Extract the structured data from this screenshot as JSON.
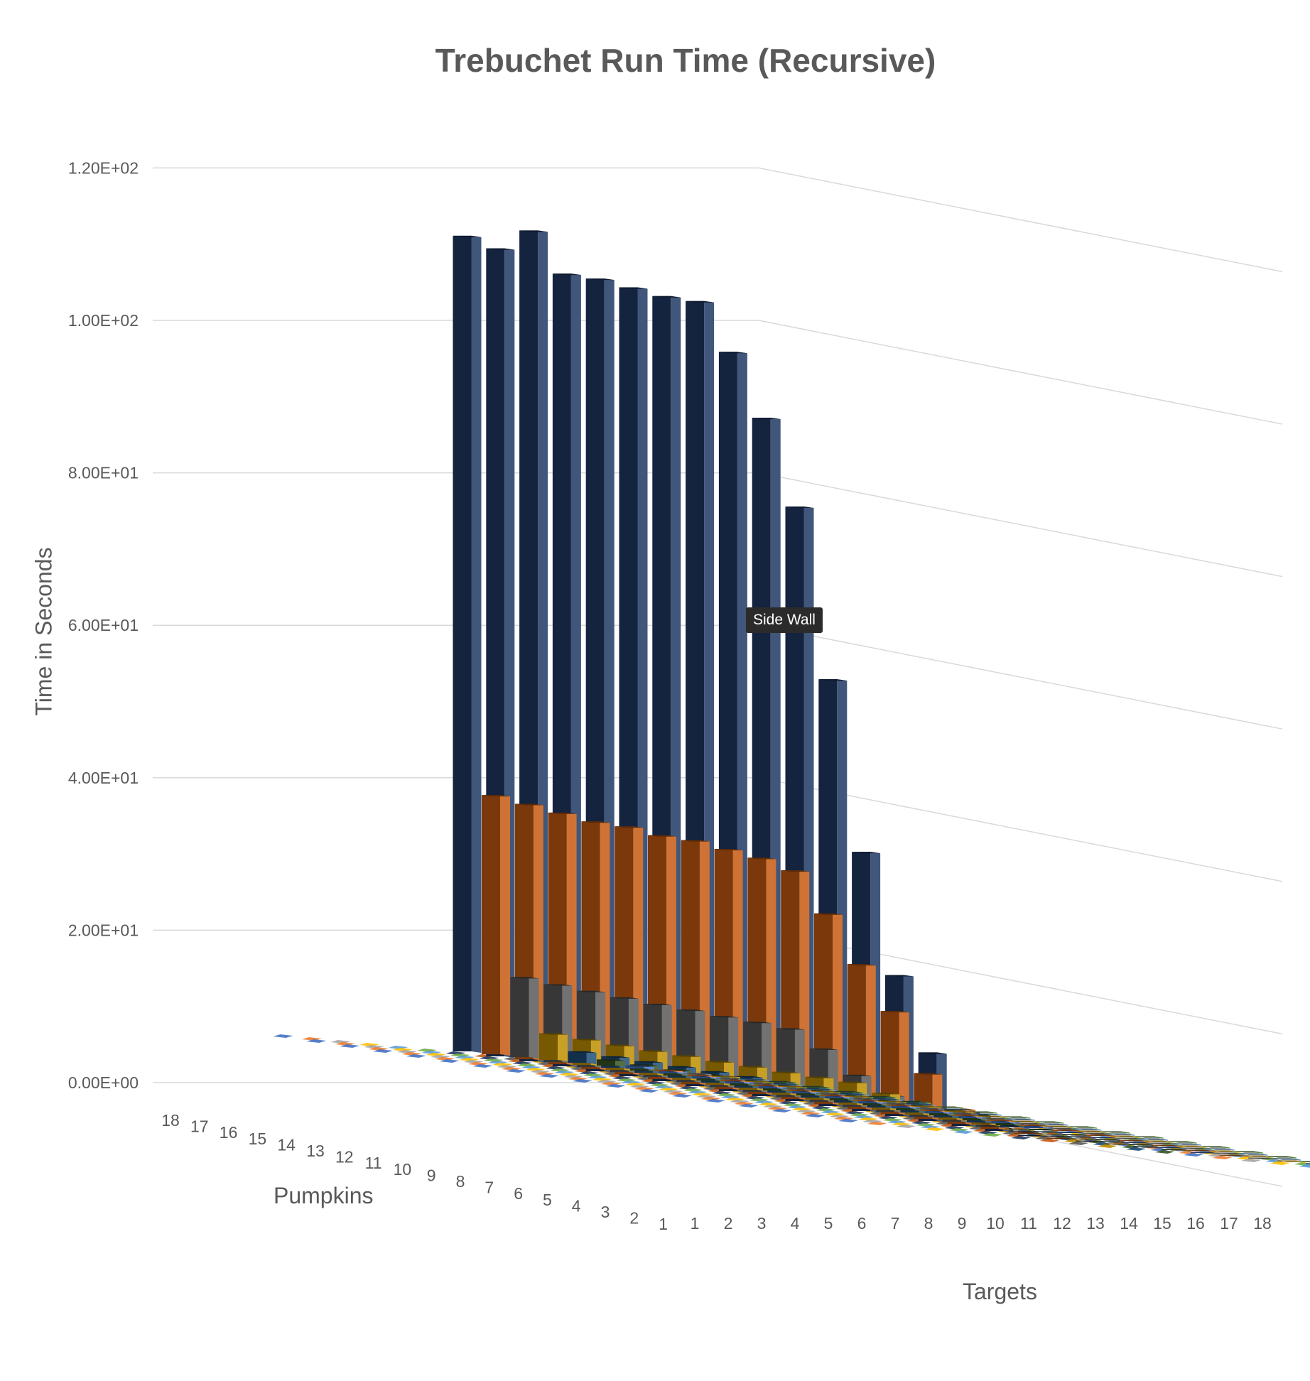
{
  "chart_data": {
    "type": "bar",
    "subtype": "3d-column",
    "title": "Trebuchet Run Time (Recursive)",
    "ylabel": "Time in Seconds",
    "depth_axis_label": "Pumpkins",
    "xlabel": "Targets",
    "ylim": [
      0,
      120
    ],
    "y_ticks": [
      "0.00E+00",
      "2.00E+01",
      "4.00E+01",
      "6.00E+01",
      "8.00E+01",
      "1.00E+02",
      "1.20E+02"
    ],
    "y_tick_values": [
      0,
      20,
      40,
      60,
      80,
      100,
      120
    ],
    "categories": [
      "1",
      "2",
      "3",
      "4",
      "5",
      "6",
      "7",
      "8",
      "9",
      "10",
      "11",
      "12",
      "13",
      "14",
      "15",
      "16",
      "17",
      "18"
    ],
    "depth_categories": [
      "18",
      "17",
      "16",
      "15",
      "14",
      "13",
      "12",
      "11",
      "10",
      "9",
      "8",
      "7",
      "6",
      "5",
      "4",
      "3",
      "2",
      "1"
    ],
    "series_colors": [
      "#70ad47",
      "#5b9bd5",
      "#ffc000",
      "#a5a5a5",
      "#ed7d31",
      "#4472c4",
      "#375623",
      "#1f4e79",
      "#bf8f00",
      "#595959",
      "#c55a11",
      "#203864"
    ],
    "series": [
      {
        "name": "1",
        "values": [
          0.01,
          0.01,
          0.01,
          0.01,
          0.01,
          0.01,
          0.01,
          0.01,
          0.01,
          0.01,
          0.01,
          0.01,
          0.01,
          0.01,
          0.01,
          0.01,
          0.01,
          0.01
        ]
      },
      {
        "name": "2",
        "values": [
          0.02,
          0.02,
          0.02,
          0.02,
          0.02,
          0.02,
          0.02,
          0.02,
          0.02,
          0.02,
          0.02,
          0.02,
          0.02,
          0.02,
          0.02,
          0.02,
          0.02,
          0.01
        ]
      },
      {
        "name": "3",
        "values": [
          0.05,
          0.05,
          0.05,
          0.05,
          0.05,
          0.05,
          0.05,
          0.05,
          0.05,
          0.05,
          0.05,
          0.05,
          0.05,
          0.05,
          0.05,
          0.05,
          0.02,
          0.01
        ]
      },
      {
        "name": "4",
        "values": [
          0.1,
          0.1,
          0.1,
          0.1,
          0.1,
          0.1,
          0.1,
          0.1,
          0.1,
          0.1,
          0.1,
          0.1,
          0.1,
          0.1,
          0.1,
          0.05,
          0.02,
          0.01
        ]
      },
      {
        "name": "5",
        "values": [
          0.2,
          0.2,
          0.2,
          0.2,
          0.2,
          0.2,
          0.2,
          0.2,
          0.2,
          0.2,
          0.2,
          0.2,
          0.2,
          0.2,
          0.1,
          0.05,
          0.02,
          0.01
        ]
      },
      {
        "name": "6",
        "values": [
          0.4,
          0.4,
          0.4,
          0.4,
          0.4,
          0.4,
          0.4,
          0.4,
          0.4,
          0.4,
          0.4,
          0.4,
          0.4,
          0.2,
          0.1,
          0.05,
          0.02,
          0.01
        ]
      },
      {
        "name": "7",
        "values": [
          0.8,
          0.8,
          0.8,
          0.8,
          0.8,
          0.8,
          0.8,
          0.8,
          0.8,
          0.8,
          0.8,
          0.8,
          0.4,
          0.2,
          0.1,
          0.05,
          0.02,
          0.01
        ]
      },
      {
        "name": "8",
        "values": [
          1.5,
          1.5,
          1.5,
          1.5,
          1.5,
          1.5,
          1.5,
          1.5,
          1.5,
          1.5,
          1.5,
          1.0,
          0.6,
          0.3,
          0.1,
          0.05,
          0.02,
          0.01
        ]
      },
      {
        "name": "9",
        "values": [
          3.5,
          3.4,
          3.3,
          3.2,
          3.2,
          3.1,
          3.1,
          3.0,
          3.0,
          3.0,
          2.2,
          1.3,
          0.6,
          0.3,
          0.1,
          0.05,
          0.02,
          0.01
        ]
      },
      {
        "name": "10",
        "values": [
          10.5,
          10.2,
          10.0,
          9.8,
          9.6,
          9.5,
          9.3,
          9.2,
          9.0,
          7.0,
          4.2,
          2.2,
          1.0,
          0.4,
          0.2,
          0.05,
          0.02,
          0.01
        ]
      },
      {
        "name": "11",
        "values": [
          34.0,
          33.5,
          33.0,
          32.5,
          32.5,
          32.0,
          32.0,
          31.5,
          31.0,
          30.0,
          25.0,
          19.0,
          13.5,
          6.0,
          2.0,
          0.6,
          0.2,
          0.05
        ]
      },
      {
        "name": "12",
        "values": [
          107.0,
          106.0,
          109.0,
          104.0,
          104.0,
          103.5,
          103.0,
          103.0,
          97.0,
          89.0,
          78.0,
          56.0,
          34.0,
          18.5,
          9.0,
          2.0,
          0.5,
          0.1
        ]
      }
    ]
  },
  "ui": {
    "tooltip_text": "Side Wall"
  }
}
